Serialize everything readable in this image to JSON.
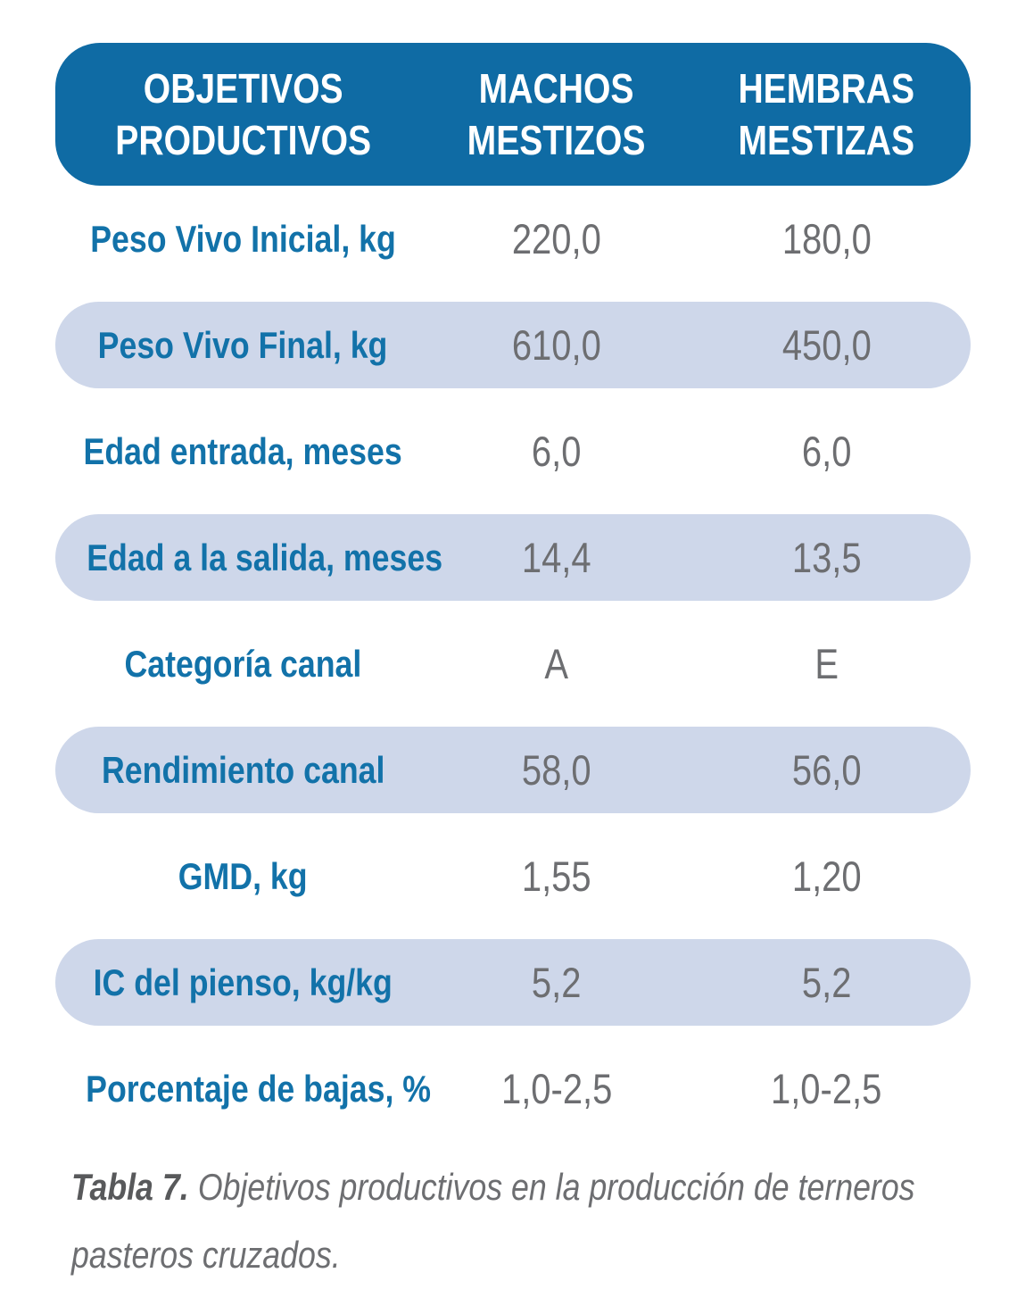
{
  "colors": {
    "header_bg": "#0F6BA4",
    "header_text": "#FFFFFF",
    "label_text": "#1272A9",
    "value_text": "#6D6E71",
    "row_alt_bg": "#CED7EA",
    "caption_label_text": "#58595B",
    "caption_text": "#6D6E71"
  },
  "table": {
    "header": {
      "columns": [
        {
          "line1": "OBJETIVOS",
          "line2": "PRODUCTIVOS"
        },
        {
          "line1": "MACHOS",
          "line2": "MESTIZOS"
        },
        {
          "line1": "HEMBRAS",
          "line2": "MESTIZAS"
        }
      ]
    },
    "rows": [
      {
        "label": "Peso Vivo Inicial, kg",
        "machos": "220,0",
        "hembras": "180,0"
      },
      {
        "label": "Peso Vivo Final, kg",
        "machos": "610,0",
        "hembras": "450,0"
      },
      {
        "label": "Edad entrada, meses",
        "machos": "6,0",
        "hembras": "6,0"
      },
      {
        "label": "Edad a la salida, meses",
        "machos": "14,4",
        "hembras": "13,5"
      },
      {
        "label": "Categoría canal",
        "machos": "A",
        "hembras": "E"
      },
      {
        "label": "Rendimiento canal",
        "machos": "58,0",
        "hembras": "56,0"
      },
      {
        "label": "GMD, kg",
        "machos": "1,55",
        "hembras": "1,20"
      },
      {
        "label": "IC del pienso, kg/kg",
        "machos": "5,2",
        "hembras": "5,2"
      },
      {
        "label": "Porcentaje de bajas, %",
        "machos": "1,0-2,5",
        "hembras": "1,0-2,5"
      }
    ]
  },
  "caption": {
    "label": "Tabla 7.",
    "text": "Objetivos productivos en la producción de terneros pasteros cruzados."
  }
}
